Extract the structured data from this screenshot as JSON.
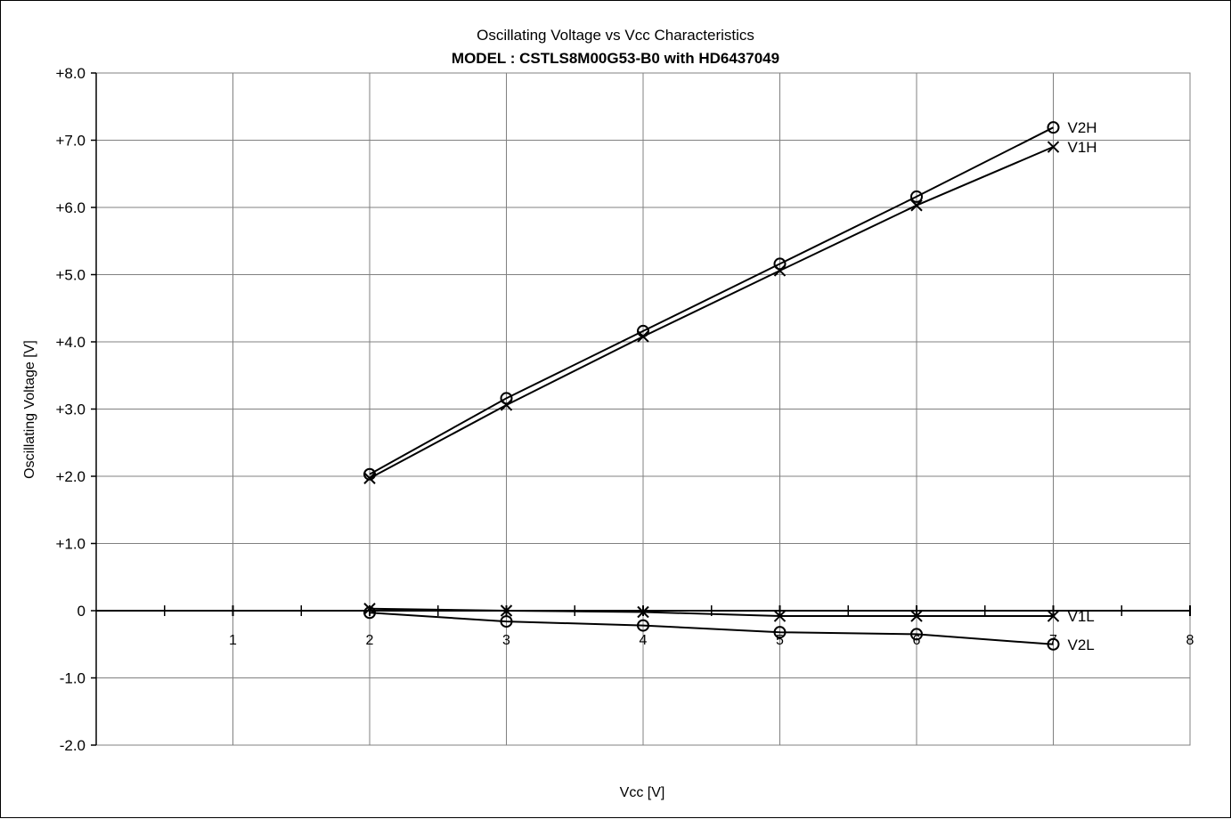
{
  "chart_data": {
    "type": "line",
    "title": "Oscillating Voltage vs Vcc Characteristics",
    "subtitle": "MODEL : CSTLS8M00G53-B0 with HD6437049",
    "xlabel": "Vcc [V]",
    "ylabel": "Oscillating Voltage [V]",
    "xlim": [
      0,
      8
    ],
    "ylim": [
      -2,
      8
    ],
    "grid": true,
    "x_ticks": [
      1,
      2,
      3,
      4,
      5,
      6,
      7,
      8
    ],
    "x_tick_labels": [
      "1",
      "2",
      "3",
      "4",
      "5",
      "6",
      "7",
      "8"
    ],
    "y_ticks": [
      8,
      7,
      6,
      5,
      4,
      3,
      2,
      1,
      0,
      -1,
      -2
    ],
    "y_tick_labels": [
      "+8.0",
      "+7.0",
      "+6.0",
      "+5.0",
      "+4.0",
      "+3.0",
      "+2.0",
      "+1.0",
      "0",
      "-1.0",
      "-2.0"
    ],
    "x": [
      2,
      3,
      4,
      5,
      6,
      7
    ],
    "series": [
      {
        "name": "V2H",
        "marker": "circle",
        "values": [
          2.03,
          3.16,
          4.16,
          5.16,
          6.16,
          7.19
        ]
      },
      {
        "name": "V1H",
        "marker": "cross",
        "values": [
          1.97,
          3.06,
          4.08,
          5.06,
          6.03,
          6.9
        ]
      },
      {
        "name": "V1L",
        "marker": "cross",
        "values": [
          0.03,
          0.0,
          -0.02,
          -0.08,
          -0.08,
          -0.08
        ]
      },
      {
        "name": "V2L",
        "marker": "circle",
        "values": [
          -0.03,
          -0.16,
          -0.22,
          -0.32,
          -0.35,
          -0.5
        ]
      }
    ]
  }
}
